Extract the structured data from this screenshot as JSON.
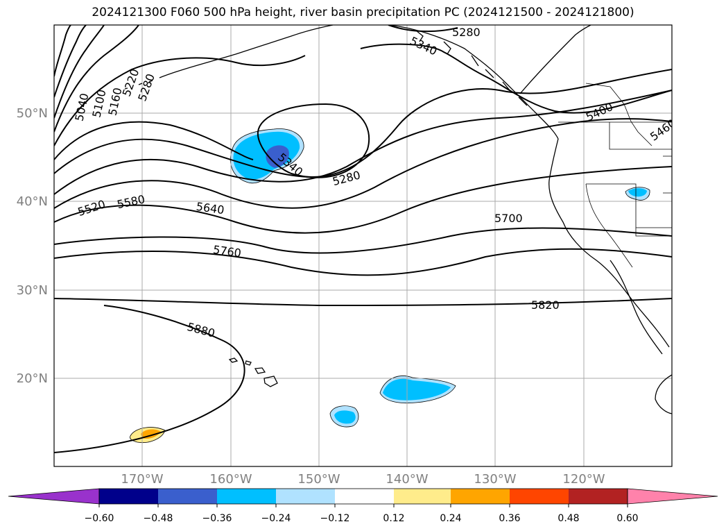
{
  "title": "2024121300 F060 500 hPa height, river basin precipitation PC (2024121500 - 2024121800)",
  "map": {
    "lat_labels": [
      "50°N",
      "40°N",
      "30°N",
      "20°N"
    ],
    "lon_labels": [
      "170°W",
      "160°W",
      "150°W",
      "140°W",
      "130°W",
      "120°W"
    ],
    "lat_range": [
      10,
      60
    ],
    "lon_range": [
      -180,
      -110
    ],
    "gridlines": true
  },
  "contours": {
    "variable": "500 hPa height",
    "labels": [
      "5040",
      "5100",
      "5160",
      "5220",
      "5280",
      "5280",
      "5280",
      "5340",
      "5340",
      "5400",
      "5460",
      "5520",
      "5580",
      "5640",
      "5700",
      "5760",
      "5820",
      "5880"
    ]
  },
  "precip_regions": [
    {
      "location": "Gulf of Alaska low",
      "category": "-0.36 to -0.24",
      "core_category": "-0.48 to -0.36"
    },
    {
      "location": "Near 20°N 140°W",
      "category": "-0.36 to -0.24"
    },
    {
      "location": "Near 16°N 147°W",
      "category": "-0.36 to -0.24"
    },
    {
      "location": "Northern California inland",
      "category": "-0.36 to -0.24"
    },
    {
      "location": "Near 14°N 169°W",
      "category": "0.24 to 0.36"
    }
  ],
  "colorbar": {
    "ticks": [
      "−0.60",
      "−0.48",
      "−0.36",
      "−0.24",
      "−0.12",
      "0.12",
      "0.24",
      "0.36",
      "0.48",
      "0.60"
    ],
    "colors": [
      "#9932CC",
      "#00008B",
      "#3A5FCD",
      "#00BFFF",
      "#B0E2FF",
      "#FFFFFF",
      "#FFEC8B",
      "#FFA500",
      "#FF4500",
      "#B22222",
      "#FF82AB"
    ]
  }
}
